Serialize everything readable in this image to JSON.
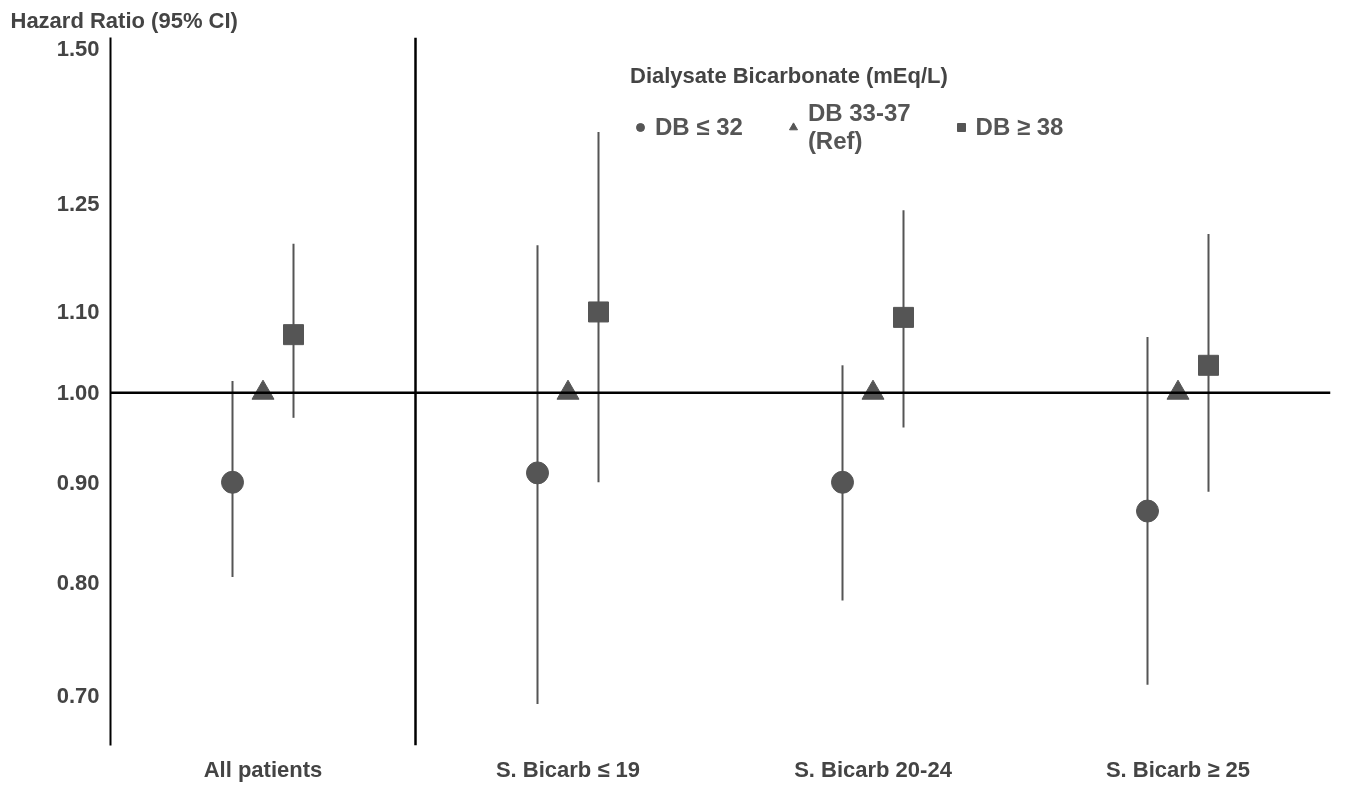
{
  "chart_data": {
    "type": "scatter",
    "ylabel": "Hazard Ratio (95% CI)",
    "legend_title": "Dialysate Bicarbonate (mEq/L)",
    "categories": [
      "All patients",
      "S. Bicarb ≤ 19",
      "S. Bicarb 20-24",
      "S. Bicarb ≥ 25"
    ],
    "series": [
      {
        "name": "DB ≤ 32",
        "color": "#555555",
        "marker": "circle",
        "values": [
          0.9,
          0.91,
          0.9,
          0.87
        ],
        "errors": [
          [
            0.805,
            1.014
          ],
          [
            0.693,
            1.19
          ],
          [
            0.783,
            1.033
          ],
          [
            0.709,
            1.068
          ]
        ]
      },
      {
        "name": "DB 33-37\n(Ref)",
        "color": "#555555",
        "marker": "triangle",
        "values": [
          1.0,
          1.0,
          1.0,
          1.0
        ]
      },
      {
        "name": "DB ≥ 38",
        "color": "#555555",
        "marker": "square",
        "values": [
          1.071,
          1.1,
          1.093,
          1.033
        ],
        "errors": [
          [
            0.971,
            1.192
          ],
          [
            0.9,
            1.36
          ],
          [
            0.96,
            1.24
          ],
          [
            0.89,
            1.206
          ]
        ]
      }
    ],
    "log": "y",
    "ylim": [
      0.66,
      1.52
    ],
    "yticks": [
      {
        "value": 0.7,
        "label": "0.70"
      },
      {
        "value": 0.8,
        "label": "0.80"
      },
      {
        "value": 0.9,
        "label": "0.90"
      },
      {
        "value": 1.0,
        "label": "1.00"
      },
      {
        "value": 1.1,
        "label": "1.10"
      },
      {
        "value": 1.25,
        "label": "1.25"
      },
      {
        "value": 1.5,
        "label": "1.50"
      }
    ],
    "ref_lines": [
      {
        "axis": "y",
        "value": 1.0,
        "color": "#000000"
      }
    ],
    "grid": false,
    "legend": "top"
  }
}
